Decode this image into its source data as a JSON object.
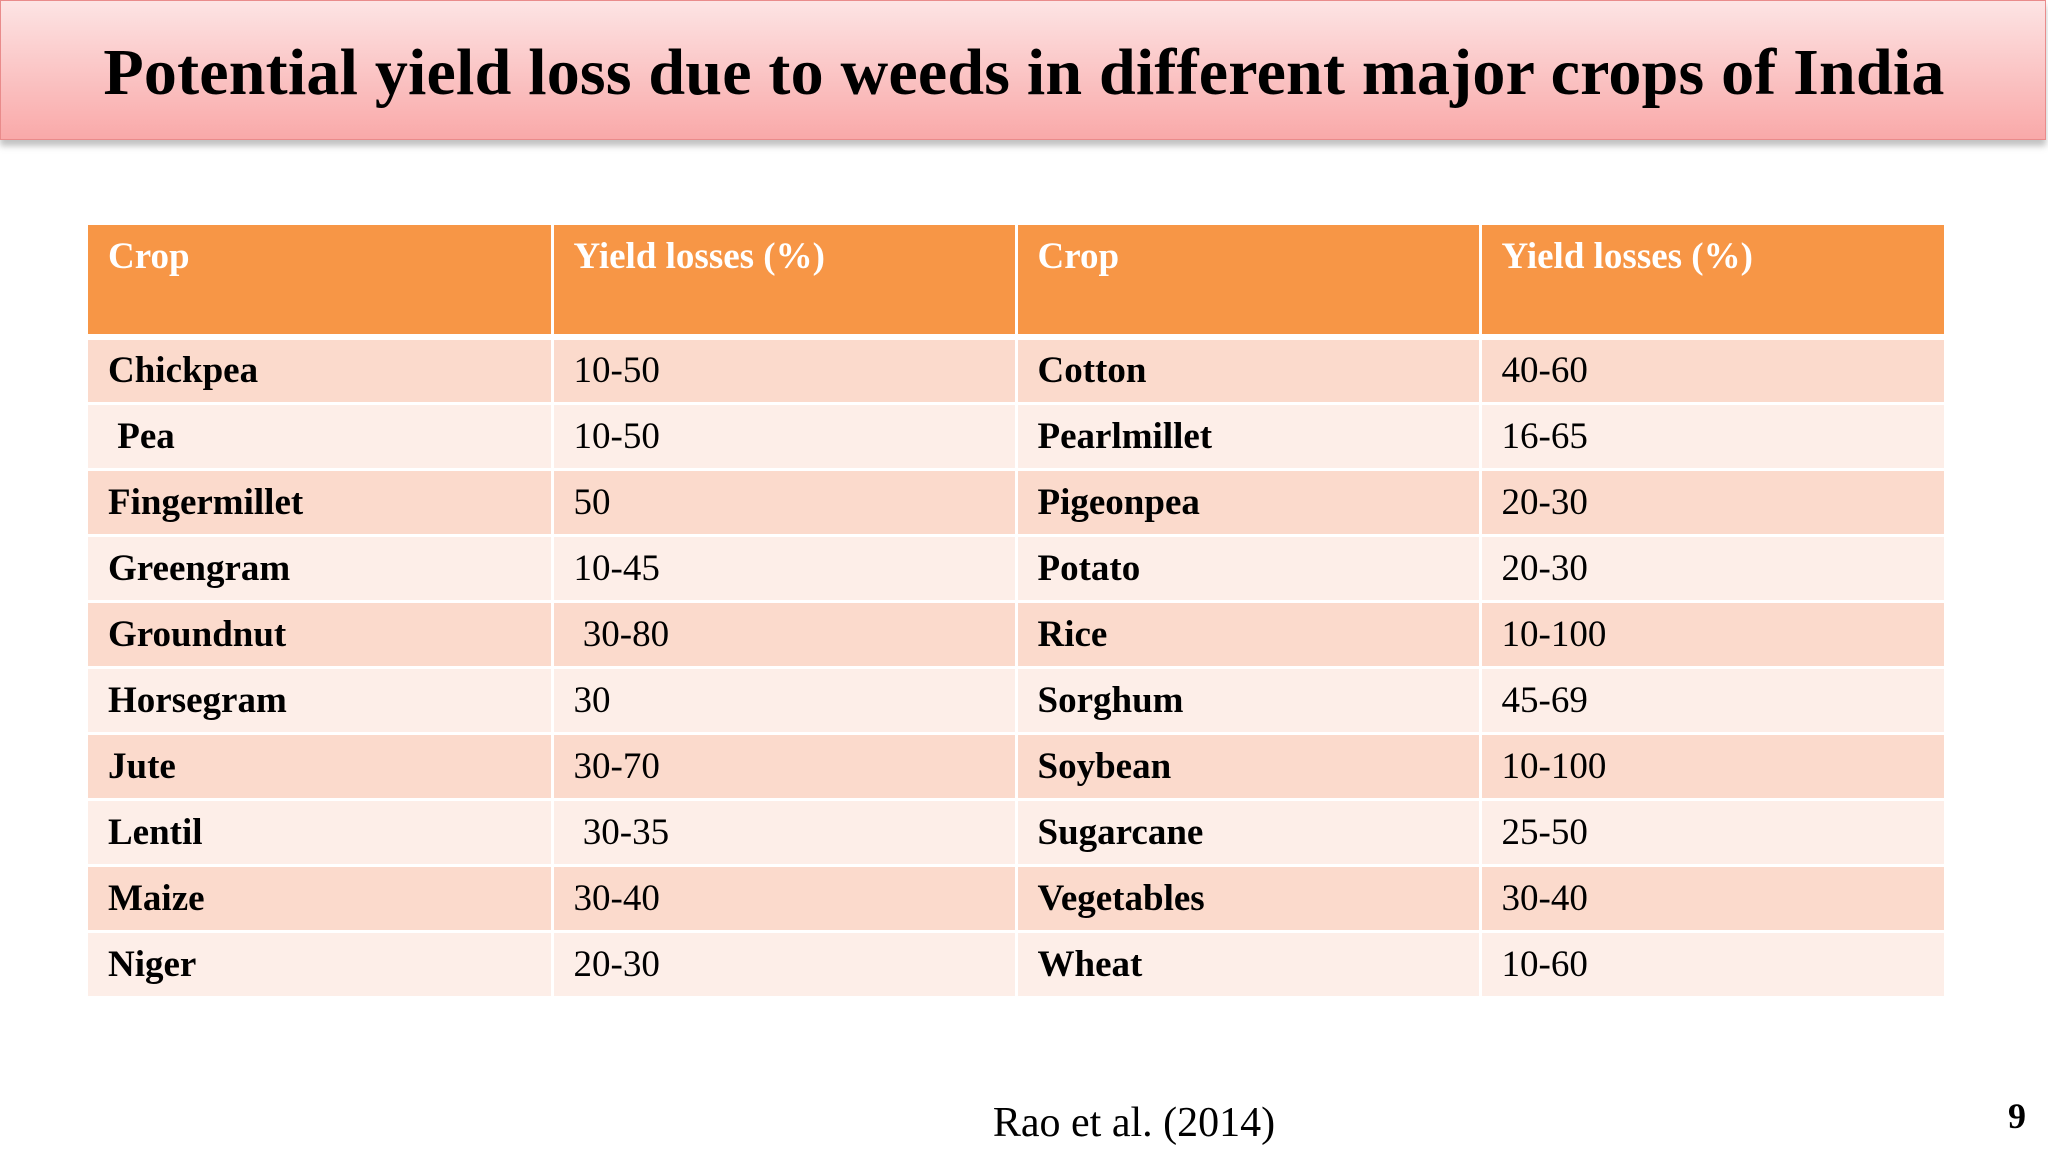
{
  "title": "Potential yield loss due to weeds in different major crops of India",
  "table": {
    "headers": [
      "Crop",
      "Yield losses (%)",
      "Crop",
      "Yield losses (%)"
    ],
    "rows": [
      [
        "Chickpea",
        "10-50",
        "Cotton",
        "40-60"
      ],
      [
        " Pea",
        "10-50",
        "Pearlmillet",
        "16-65"
      ],
      [
        "Fingermillet",
        "50",
        "Pigeonpea",
        "20-30"
      ],
      [
        "Greengram",
        "10-45",
        "Potato",
        "20-30"
      ],
      [
        "Groundnut",
        " 30-80",
        "Rice",
        "10-100"
      ],
      [
        "Horsegram",
        "30",
        "Sorghum",
        "45-69"
      ],
      [
        "Jute",
        "30-70",
        "Soybean",
        "10-100"
      ],
      [
        "Lentil",
        " 30-35",
        "Sugarcane",
        "25-50"
      ],
      [
        "Maize",
        "30-40",
        "Vegetables",
        "30-40"
      ],
      [
        "Niger",
        "20-30",
        "Wheat",
        "10-60"
      ]
    ]
  },
  "citation": "Rao et al. (2014)",
  "page_number": "9",
  "colors": {
    "header_fill": "#f79646",
    "row_odd": "#fbdacc",
    "row_even": "#fdeee8",
    "title_bar": "#fbc9c9"
  }
}
